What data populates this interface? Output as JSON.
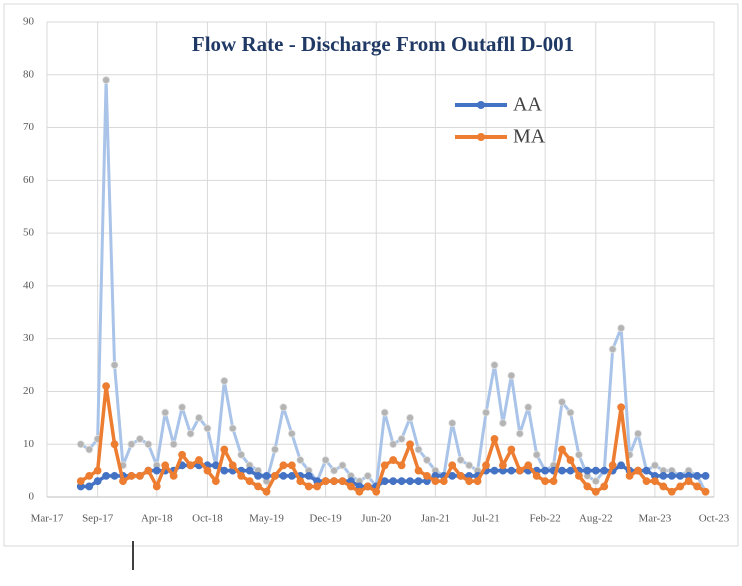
{
  "chart_data": {
    "type": "line",
    "title": "Flow Rate - Discharge From Outafll D-001",
    "x": [
      "2017-07",
      "2017-08",
      "2017-09",
      "2017-10",
      "2017-11",
      "2017-12",
      "2018-01",
      "2018-02",
      "2018-03",
      "2018-04",
      "2018-05",
      "2018-06",
      "2018-07",
      "2018-08",
      "2018-09",
      "2018-10",
      "2018-11",
      "2018-12",
      "2019-01",
      "2019-02",
      "2019-03",
      "2019-04",
      "2019-05",
      "2019-06",
      "2019-07",
      "2019-08",
      "2019-09",
      "2019-10",
      "2019-11",
      "2019-12",
      "2020-01",
      "2020-02",
      "2020-03",
      "2020-04",
      "2020-05",
      "2020-06",
      "2020-07",
      "2020-08",
      "2020-09",
      "2020-10",
      "2020-11",
      "2020-12",
      "2021-01",
      "2021-02",
      "2021-03",
      "2021-04",
      "2021-05",
      "2021-06",
      "2021-07",
      "2021-08",
      "2021-09",
      "2021-10",
      "2021-11",
      "2021-12",
      "2022-01",
      "2022-02",
      "2022-03",
      "2022-04",
      "2022-05",
      "2022-06",
      "2022-07",
      "2022-08",
      "2022-09",
      "2022-10",
      "2022-11",
      "2022-12",
      "2023-01",
      "2023-02",
      "2023-03",
      "2023-04",
      "2023-05",
      "2023-06",
      "2023-07",
      "2023-08",
      "2023-09"
    ],
    "series": [
      {
        "color": "#a9c4e8",
        "marker_color": "#b4b4b4",
        "values": [
          10,
          9,
          11,
          79,
          25,
          6,
          10,
          11,
          10,
          6,
          16,
          10,
          17,
          12,
          15,
          13,
          6,
          22,
          13,
          8,
          6,
          5,
          3,
          9,
          17,
          12,
          7,
          5,
          3,
          7,
          5,
          6,
          4,
          3,
          4,
          2,
          16,
          10,
          11,
          15,
          9,
          7,
          5,
          4,
          14,
          7,
          6,
          5,
          16,
          25,
          14,
          23,
          12,
          17,
          8,
          5,
          6,
          18,
          16,
          8,
          4,
          3,
          5,
          28,
          32,
          8,
          12,
          5,
          6,
          5,
          5,
          4,
          5,
          4,
          1
        ]
      },
      {
        "name": "AA",
        "color": "#4472c4",
        "values": [
          2,
          2,
          3,
          4,
          4,
          4,
          4,
          4,
          5,
          5,
          5,
          5,
          6,
          6,
          6,
          6,
          6,
          5,
          5,
          5,
          5,
          4,
          4,
          4,
          4,
          4,
          4,
          4,
          3,
          3,
          3,
          3,
          3,
          2,
          2,
          2,
          3,
          3,
          3,
          3,
          3,
          3,
          4,
          4,
          4,
          4,
          4,
          4,
          5,
          5,
          5,
          5,
          5,
          5,
          5,
          5,
          5,
          5,
          5,
          5,
          5,
          5,
          5,
          5,
          6,
          5,
          5,
          5,
          4,
          4,
          4,
          4,
          4,
          4,
          4
        ]
      },
      {
        "name": "MA",
        "color": "#ed7d31",
        "values": [
          3,
          4,
          5,
          21,
          10,
          3,
          4,
          4,
          5,
          2,
          6,
          4,
          8,
          6,
          7,
          5,
          3,
          9,
          6,
          4,
          3,
          2,
          1,
          4,
          6,
          6,
          3,
          2,
          2,
          3,
          3,
          3,
          2,
          1,
          2,
          1,
          6,
          7,
          6,
          10,
          5,
          4,
          3,
          3,
          6,
          4,
          3,
          3,
          6,
          11,
          6,
          9,
          5,
          6,
          4,
          3,
          3,
          9,
          7,
          4,
          2,
          1,
          2,
          6,
          17,
          4,
          5,
          3,
          3,
          2,
          1,
          2,
          3,
          2,
          1
        ]
      }
    ],
    "xlim": [
      "2017-03",
      "2023-10"
    ],
    "xticks": [
      {
        "value": "2017-03",
        "label": "Mar-17"
      },
      {
        "value": "2017-09",
        "label": "Sep-17"
      },
      {
        "value": "2018-04",
        "label": "Apr-18"
      },
      {
        "value": "2018-10",
        "label": "Oct-18"
      },
      {
        "value": "2019-05",
        "label": "May-19"
      },
      {
        "value": "2019-12",
        "label": "Dec-19"
      },
      {
        "value": "2020-06",
        "label": "Jun-20"
      },
      {
        "value": "2021-01",
        "label": "Jan-21"
      },
      {
        "value": "2021-07",
        "label": "Jul-21"
      },
      {
        "value": "2022-02",
        "label": "Feb-22"
      },
      {
        "value": "2022-08",
        "label": "Aug-22"
      },
      {
        "value": "2023-03",
        "label": "Mar-23"
      },
      {
        "value": "2023-10",
        "label": "Oct-23"
      }
    ],
    "ylim": [
      0,
      90
    ],
    "yticks": [
      0,
      10,
      20,
      30,
      40,
      50,
      60,
      70,
      80,
      90
    ],
    "grid": true,
    "legend": "top-right"
  }
}
